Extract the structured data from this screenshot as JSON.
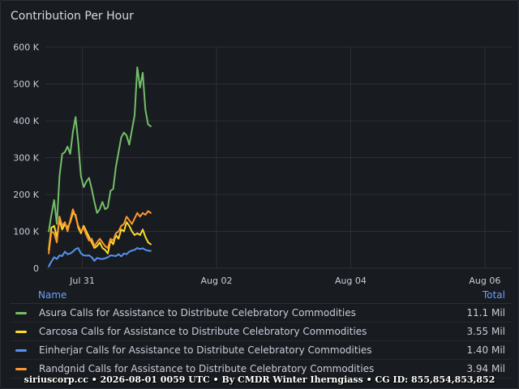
{
  "panel": {
    "title": "Contribution Per Hour"
  },
  "legend": {
    "name_header": "Name",
    "total_header": "Total",
    "items": [
      {
        "name": "Asura Calls for Assistance to Distribute Celebratory Commodities",
        "total": "11.1 Mil",
        "color": "#73bf69"
      },
      {
        "name": "Carcosa Calls for Assistance to Distribute Celebratory Commodities",
        "total": "3.55 Mil",
        "color": "#fade2a"
      },
      {
        "name": "Einherjar Calls for Assistance to Distribute Celebratory Commodities",
        "total": "1.40 Mil",
        "color": "#5794f2"
      },
      {
        "name": "Randgnid Calls for Assistance to Distribute Celebratory Commodities",
        "total": "3.94 Mil",
        "color": "#ff9830"
      }
    ]
  },
  "footer": {
    "text": "siriuscorp.cc • 2026-08-01 0059 UTC • By CMDR Winter Iherngiass • CG ID: 855,854,853,852"
  },
  "chart_data": {
    "type": "line",
    "ylim": [
      0,
      600000
    ],
    "yticks": [
      0,
      100000,
      200000,
      300000,
      400000,
      500000,
      600000
    ],
    "ytick_labels": [
      "0",
      "100 K",
      "200 K",
      "300 K",
      "400 K",
      "500 K",
      "600 K"
    ],
    "xlim": [
      -0.55,
      6.4
    ],
    "xticks": [
      0,
      2,
      4,
      6
    ],
    "xtick_labels": [
      "Jul 31",
      "Aug 02",
      "Aug 04",
      "Aug 06"
    ],
    "grid": true,
    "legend_position": "bottom",
    "x": [
      -0.5,
      -0.46,
      -0.42,
      -0.38,
      -0.34,
      -0.3,
      -0.26,
      -0.22,
      -0.18,
      -0.14,
      -0.1,
      -0.06,
      -0.02,
      0.02,
      0.06,
      0.1,
      0.14,
      0.18,
      0.22,
      0.26,
      0.3,
      0.34,
      0.38,
      0.42,
      0.46,
      0.5,
      0.54,
      0.58,
      0.62,
      0.66,
      0.7,
      0.74,
      0.78,
      0.82,
      0.86,
      0.9,
      0.94,
      0.98,
      1.02
    ],
    "series": [
      {
        "name": "Asura Calls for Assistance to Distribute Celebratory Commodities",
        "color": "#73bf69",
        "values": [
          100000,
          145000,
          185000,
          120000,
          250000,
          310000,
          315000,
          330000,
          310000,
          370000,
          410000,
          340000,
          250000,
          220000,
          235000,
          245000,
          215000,
          180000,
          150000,
          160000,
          180000,
          160000,
          165000,
          210000,
          215000,
          275000,
          315000,
          355000,
          368000,
          360000,
          335000,
          375000,
          415000,
          545000,
          490000,
          530000,
          430000,
          390000,
          385000
        ]
      },
      {
        "name": "Carcosa Calls for Assistance to Distribute Celebratory Commodities",
        "color": "#fade2a",
        "values": [
          50000,
          110000,
          115000,
          85000,
          130000,
          105000,
          120000,
          110000,
          125000,
          150000,
          145000,
          110000,
          95000,
          115000,
          100000,
          85000,
          70000,
          55000,
          60000,
          70000,
          55000,
          50000,
          40000,
          75000,
          65000,
          90000,
          80000,
          105000,
          100000,
          125000,
          115000,
          100000,
          90000,
          95000,
          90000,
          105000,
          85000,
          70000,
          65000
        ]
      },
      {
        "name": "Einherjar Calls for Assistance to Distribute Celebratory Commodities",
        "color": "#5794f2",
        "values": [
          5000,
          18000,
          30000,
          25000,
          35000,
          33000,
          45000,
          38000,
          40000,
          45000,
          52000,
          55000,
          40000,
          35000,
          34000,
          35000,
          30000,
          20000,
          28000,
          26000,
          25000,
          27000,
          30000,
          35000,
          34000,
          33000,
          38000,
          32000,
          40000,
          38000,
          45000,
          48000,
          50000,
          55000,
          52000,
          54000,
          50000,
          48000,
          47000
        ]
      },
      {
        "name": "Randgnid Calls for Assistance to Distribute Celebratory Commodities",
        "color": "#ff9830",
        "values": [
          40000,
          100000,
          95000,
          70000,
          140000,
          115000,
          125000,
          100000,
          130000,
          160000,
          140000,
          115000,
          100000,
          110000,
          90000,
          75000,
          80000,
          60000,
          70000,
          80000,
          70000,
          60000,
          55000,
          80000,
          75000,
          95000,
          100000,
          115000,
          120000,
          140000,
          130000,
          120000,
          135000,
          150000,
          140000,
          150000,
          145000,
          155000,
          150000
        ]
      }
    ]
  }
}
